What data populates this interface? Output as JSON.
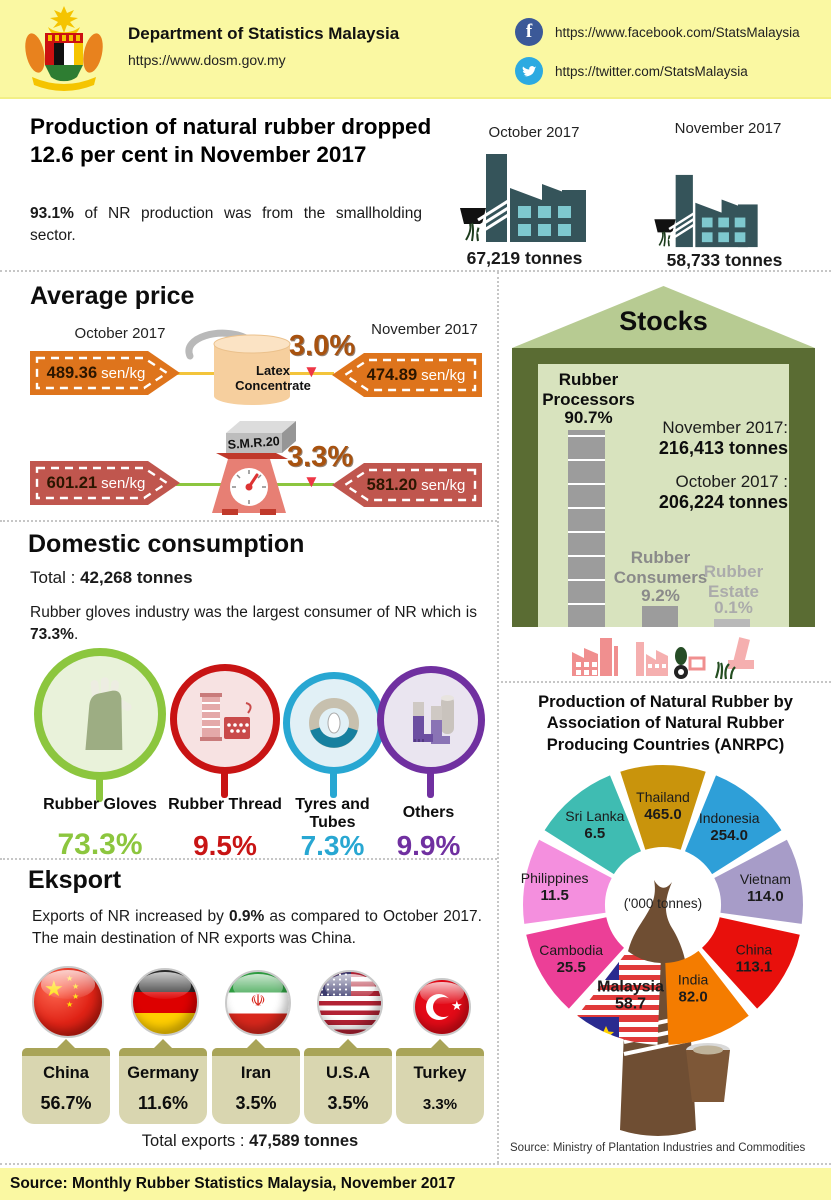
{
  "header": {
    "title": "Department of Statistics Malaysia",
    "url": "https://www.dosm.gov.my",
    "facebook_url": "https://www.facebook.com/StatsMalaysia",
    "twitter_url": "https://twitter.com/StatsMalaysia"
  },
  "production": {
    "headline": "Production of natural rubber dropped 12.6 per cent in November 2017",
    "note_bold": "93.1%",
    "note_rest": " of NR production was from the smallholding sector.",
    "october_label": "October 2017",
    "november_label": "November 2017",
    "october_value": "67,219 tonnes",
    "november_value": "58,733 tonnes"
  },
  "average_price": {
    "title": "Average price",
    "october_label": "October 2017",
    "november_label": "November 2017",
    "unit": "sen/kg",
    "latex": {
      "name_line1": "Latex",
      "name_line2": "Concentrate",
      "october": "489.36",
      "november": "474.89",
      "change": "3.0%"
    },
    "smr": {
      "name": "S.M.R.20",
      "october": "601.21",
      "november": "581.20",
      "change": "3.3%"
    }
  },
  "stocks": {
    "title": "Stocks",
    "november_label": "November 2017:",
    "november_value": "216,413 tonnes",
    "october_label": "October 2017 :",
    "october_value": "206,224 tonnes",
    "categories": [
      {
        "label": "Rubber Processors",
        "pct": "90.7%"
      },
      {
        "label": "Rubber Consumers",
        "pct": "9.2%"
      },
      {
        "label": "Rubber Estate",
        "pct": "0.1%"
      }
    ]
  },
  "domestic": {
    "title": "Domestic consumption",
    "total_prefix": "Total : ",
    "total_bold": "42,268  tonnes",
    "desc_pre": "Rubber gloves industry was the largest consumer of NR which is ",
    "desc_bold": "73.3%",
    "desc_post": ".",
    "items": [
      {
        "label": "Rubber Gloves",
        "pct": "73.3%",
        "color": "#8CC63E"
      },
      {
        "label": "Rubber Thread",
        "pct": "9.5%",
        "color": "#C81414"
      },
      {
        "label": "Tyres and Tubes",
        "pct": "7.3%",
        "color": "#28A7D2"
      },
      {
        "label": "Others",
        "pct": "9.9%",
        "color": "#7030A0"
      }
    ]
  },
  "export": {
    "title": "Eksport",
    "desc_pre": "Exports of NR increased by ",
    "desc_bold": "0.9%",
    "desc_post": " as compared to October  2017. The main destination of NR exports was China.",
    "items": [
      {
        "country": "China",
        "pct": "56.7%"
      },
      {
        "country": "Germany",
        "pct": "11.6%"
      },
      {
        "country": "Iran",
        "pct": "3.5%"
      },
      {
        "country": "U.S.A",
        "pct": "3.5%"
      },
      {
        "country": "Turkey",
        "pct": "3.3%"
      }
    ],
    "total_prefix": "Total exports : ",
    "total_bold": "47,589 tonnes"
  },
  "anrpc": {
    "title": "Production of Natural Rubber by Association of Natural Rubber Producing Countries (ANRPC)",
    "center_label": "('000 tonnes)",
    "source": "Source: Ministry of Plantation Industries and Commodities"
  },
  "chart_data": [
    {
      "type": "pie",
      "title": "Production of Natural Rubber by Association of Natural Rubber Producing Countries (ANRPC)",
      "unit": "'000 tonnes",
      "categories": [
        "Thailand",
        "Indonesia",
        "Vietnam",
        "China",
        "India",
        "Malaysia",
        "Cambodia",
        "Philippines",
        "Sri Lanka"
      ],
      "values": [
        465.0,
        254.0,
        114.0,
        113.1,
        82.0,
        58.7,
        25.5,
        11.5,
        6.5
      ],
      "display_values": [
        "465.0",
        "254.0",
        "114.0",
        "113.1",
        "82.0",
        "58.7",
        "25.5",
        "11.5",
        "6.5"
      ],
      "colors": [
        "#C9940C",
        "#2E9FD8",
        "#A79CC8",
        "#E8100C",
        "#F47C00",
        "malaysia-flag",
        "#EC3F97",
        "#F48FDE",
        "#3FBCB2"
      ],
      "legend_position": "labels-in-slices",
      "note": "decorative donut with equal-angle slices; rubber tree trunk graphic below"
    },
    {
      "type": "bar",
      "title": "Stocks",
      "categories": [
        "Rubber Processors",
        "Rubber Consumers",
        "Rubber Estate"
      ],
      "values": [
        90.7,
        9.2,
        0.1
      ],
      "unit": "%",
      "annotations": [
        "November 2017: 216,413 tonnes",
        "October 2017 : 206,224 tonnes"
      ]
    },
    {
      "type": "bar",
      "title": "Domestic consumption share of NR",
      "categories": [
        "Rubber Gloves",
        "Rubber Thread",
        "Tyres and Tubes",
        "Others"
      ],
      "values": [
        73.3,
        9.5,
        7.3,
        9.9
      ],
      "unit": "%"
    },
    {
      "type": "bar",
      "title": "Exports of NR by destination",
      "categories": [
        "China",
        "Germany",
        "Iran",
        "U.S.A",
        "Turkey"
      ],
      "values": [
        56.7,
        11.6,
        3.5,
        3.5,
        3.3
      ],
      "unit": "%"
    },
    {
      "type": "bar",
      "title": "Production of natural rubber",
      "categories": [
        "October 2017",
        "November 2017"
      ],
      "values": [
        67219,
        58733
      ],
      "unit": "tonnes"
    }
  ],
  "footer": {
    "source": "Source:  Monthly Rubber Statistics Malaysia, November 2017"
  }
}
